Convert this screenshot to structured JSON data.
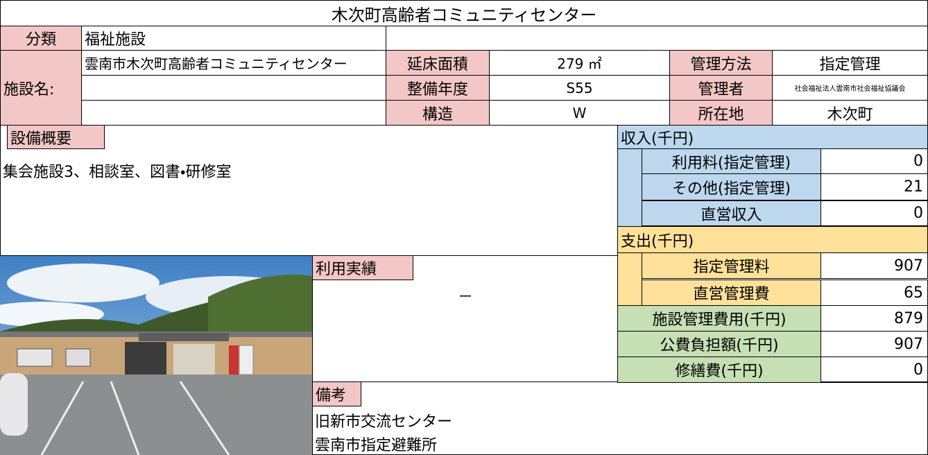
{
  "title": "木次町高齢者コミュニティセンター",
  "info": {
    "category_label": "分類",
    "category": "福祉施設",
    "name_label": "施設名:",
    "name": "雲南市木次町高齢者コミュニティセンター",
    "fields": [
      {
        "label": "延床面積",
        "value": "279 ㎡"
      },
      {
        "label": "整備年度",
        "value": "S55"
      },
      {
        "label": "構造",
        "value": "W"
      },
      {
        "label": "管理方法",
        "value": "指定管理"
      },
      {
        "label": "管理者",
        "value": "社会福祉法人雲南市社会福祉協議会"
      },
      {
        "label": "所在地",
        "value": "木次町"
      }
    ]
  },
  "facilities": {
    "label": "設備概要",
    "text": "集会施設3、相談室、図書・研修室"
  },
  "usage": {
    "label": "利用実績",
    "value": "－"
  },
  "notes": {
    "label": "備考",
    "lines": [
      "旧新市交流センター",
      "雲南市指定避難所"
    ]
  },
  "finance": {
    "income": {
      "label": "収入(千円)",
      "rows": [
        {
          "label": "利用料(指定管理)",
          "value": 0
        },
        {
          "label": "その他(指定管理)",
          "value": 21
        },
        {
          "label": "直営収入",
          "value": 0
        }
      ]
    },
    "expense": {
      "label": "支出(千円)",
      "rows": [
        {
          "label": "指定管理料",
          "value": 907
        },
        {
          "label": "直営管理費",
          "value": 65
        }
      ]
    },
    "summary": [
      {
        "label": "施設管理費用(千円)",
        "value": 879
      },
      {
        "label": "公費負担額(千円)",
        "value": 907
      },
      {
        "label": "修繕費(千円)",
        "value": 0
      }
    ]
  }
}
